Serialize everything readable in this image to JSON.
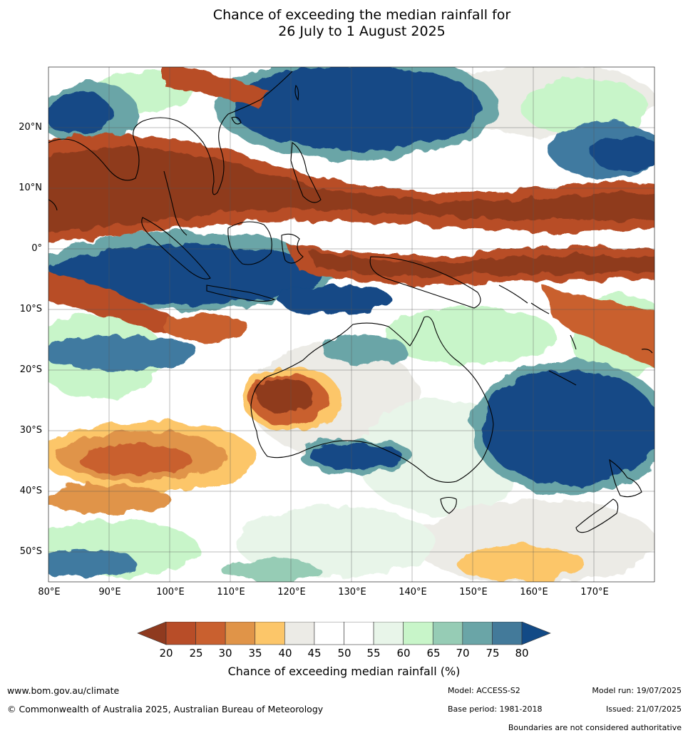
{
  "title": {
    "line1": "Chance of exceeding the median rainfall for",
    "line2": "26 July to 1 August 2025"
  },
  "map": {
    "lat_labels": [
      "20°N",
      "10°N",
      "0°",
      "10°S",
      "20°S",
      "30°S",
      "40°S",
      "50°S"
    ],
    "lon_labels": [
      "80°E",
      "90°E",
      "100°E",
      "110°E",
      "120°E",
      "130°E",
      "140°E",
      "150°E",
      "160°E",
      "170°E"
    ],
    "colors": {
      "very_dry": "#8f3a1f",
      "dry": "#b84d28",
      "moderately_dry": "#d56a33",
      "slightly_dry": "#e6974a",
      "near_dry": "#fcc669",
      "neutral_low": "#ecebe6",
      "neutral": "#ffffff",
      "near_wet": "#e8f5e9",
      "slightly_wet": "#c8f5c9",
      "moderately_wet": "#96ccb5",
      "wet": "#6aa5a7",
      "very_wet": "#3f7aa0",
      "extremely_wet": "#124a86"
    }
  },
  "colorbar": {
    "ticks": [
      "20",
      "25",
      "30",
      "35",
      "40",
      "45",
      "50",
      "55",
      "60",
      "65",
      "70",
      "75",
      "80"
    ],
    "colors": [
      "#8f3a1f",
      "#b84d28",
      "#c9602f",
      "#e09448",
      "#fcc669",
      "#ecebe6",
      "#ffffff",
      "#ffffff",
      "#e8f5e9",
      "#c8f5c9",
      "#96ccb5",
      "#6aa5a7",
      "#437a9a",
      "#124a86"
    ],
    "label": "Chance of exceeding median rainfall (%)"
  },
  "footer": {
    "website": "www.bom.gov.au/climate",
    "copyright": "© Commonwealth of Australia 2025, Australian Bureau of Meteorology",
    "model": "Model: ACCESS-S2",
    "model_run": "Model run: 19/07/2025",
    "base_period": "Base period: 1981-2018",
    "issued": "Issued: 21/07/2025",
    "disclaimer": "Boundaries are not considered authoritative"
  }
}
